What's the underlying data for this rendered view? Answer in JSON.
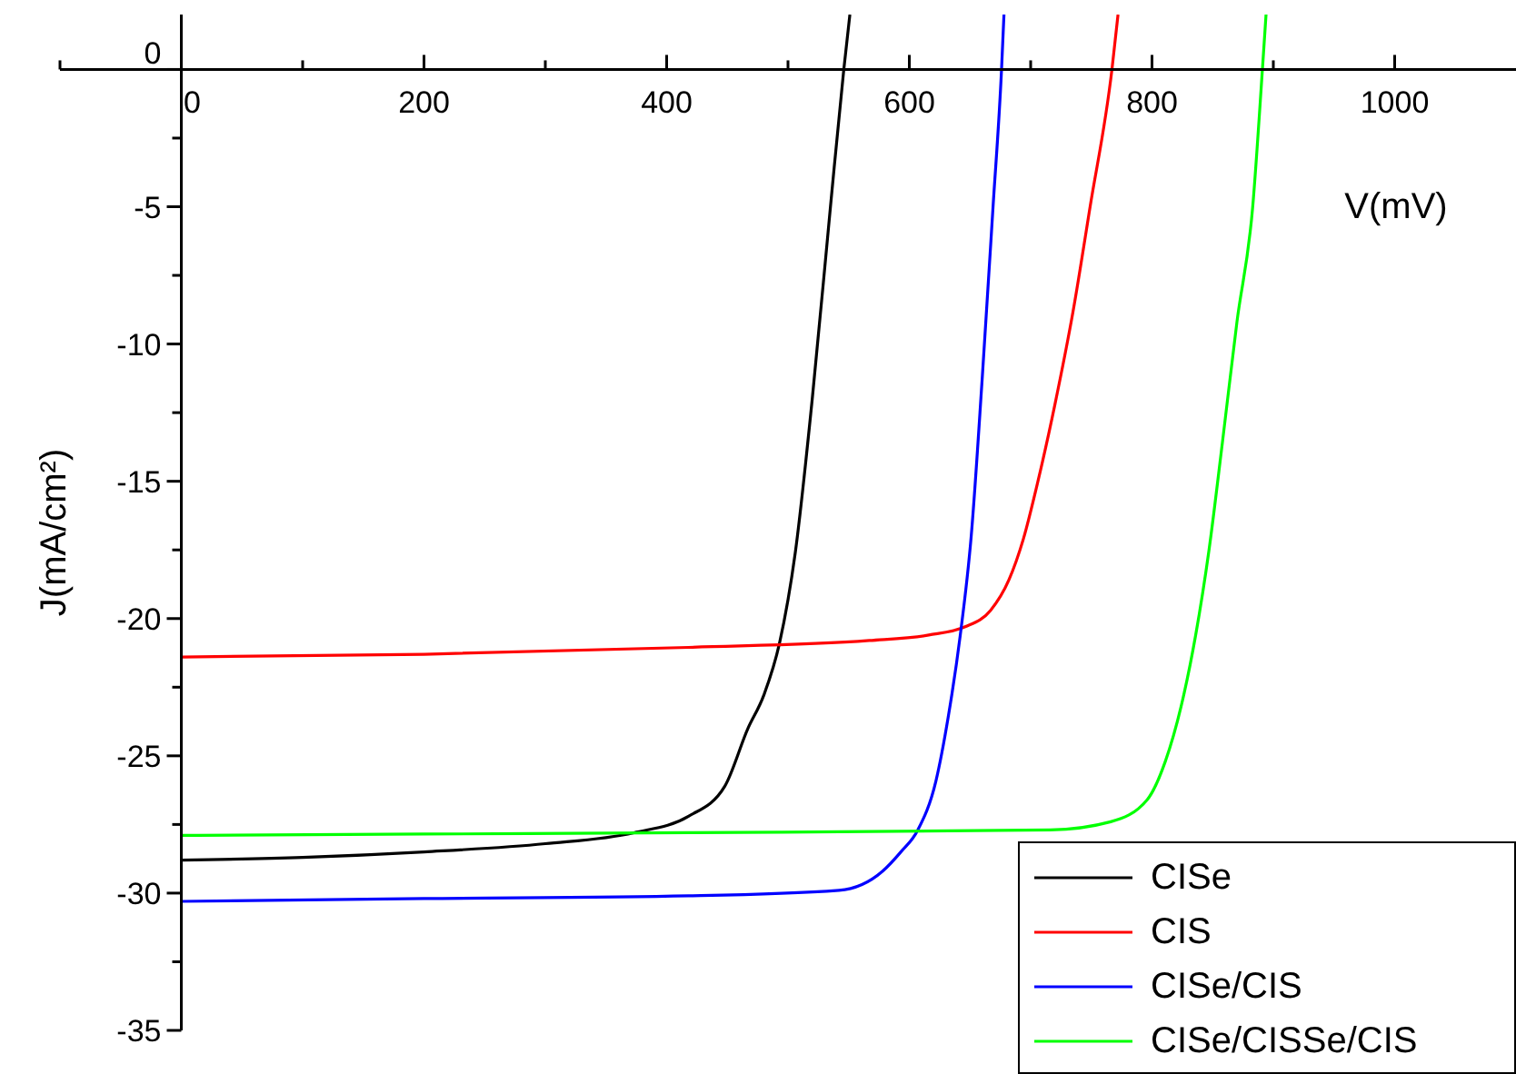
{
  "chart_data": {
    "type": "line",
    "xlabel": "V(mV)",
    "ylabel": "J(mA/cm²)",
    "xlim": [
      -100,
      1100
    ],
    "ylim": [
      -35,
      2
    ],
    "xticks": [
      {
        "value": -100,
        "label": null
      },
      0,
      {
        "value": 100,
        "label": null
      },
      200,
      {
        "value": 300,
        "label": null
      },
      400,
      {
        "value": 500,
        "label": null
      },
      600,
      {
        "value": 700,
        "label": null
      },
      800,
      {
        "value": 900,
        "label": null
      },
      1000
    ],
    "yticks": [
      0,
      {
        "value": -2.5,
        "label": null
      },
      -5,
      {
        "value": -7.5,
        "label": null
      },
      -10,
      {
        "value": -12.5,
        "label": null
      },
      -15,
      {
        "value": -17.5,
        "label": null
      },
      -20,
      {
        "value": -22.5,
        "label": null
      },
      -25,
      {
        "value": -27.5,
        "label": null
      },
      -30,
      {
        "value": -32.5,
        "label": null
      },
      -35
    ],
    "legend": "bottom right",
    "marker": "none",
    "line_style": "solid",
    "series": [
      {
        "name": "CISe",
        "color": "#000000",
        "x": [
          0,
          100,
          200,
          300,
          373,
          418,
          448,
          467,
          480,
          493,
          506,
          520,
          535,
          546,
          551
        ],
        "values": [
          -28.8,
          -28.7,
          -28.5,
          -28.2,
          -27.8,
          -27.2,
          -26.1,
          -24,
          -22.8,
          -20.9,
          -17.6,
          -12,
          -5,
          0,
          2
        ]
      },
      {
        "name": "CIS",
        "color": "#ff0000",
        "x": [
          0,
          200,
          418,
          567,
          616,
          646,
          667,
          682,
          694,
          706,
          720,
          735,
          749,
          767,
          772
        ],
        "values": [
          -21.4,
          -21.3,
          -21.05,
          -20.8,
          -20.6,
          -20.3,
          -19.7,
          -18.6,
          -17.1,
          -15,
          -12.2,
          -8.8,
          -5,
          0,
          2
        ]
      },
      {
        "name": "CISe/CIS",
        "color": "#0000ff",
        "x": [
          0,
          200,
          418,
          542,
          578,
          593,
          607,
          622,
          632,
          642,
          651,
          660,
          669,
          676,
          678
        ],
        "values": [
          -30.3,
          -30.2,
          -30.1,
          -29.9,
          -29.2,
          -28.5,
          -27.7,
          -25.9,
          -23.6,
          -20.6,
          -17,
          -11.3,
          -5,
          0,
          2
        ]
      },
      {
        "name": "CISe/CISSe/CIS",
        "color": "#00ff00",
        "x": [
          0,
          200,
          418,
          716,
          766,
          796,
          811,
          824,
          836,
          847,
          858,
          870,
          883,
          891,
          894
        ],
        "values": [
          -27.9,
          -27.85,
          -27.8,
          -27.7,
          -27.4,
          -26.6,
          -25.2,
          -23.2,
          -20.6,
          -17.5,
          -13.6,
          -9.2,
          -5,
          0,
          2
        ]
      }
    ]
  }
}
